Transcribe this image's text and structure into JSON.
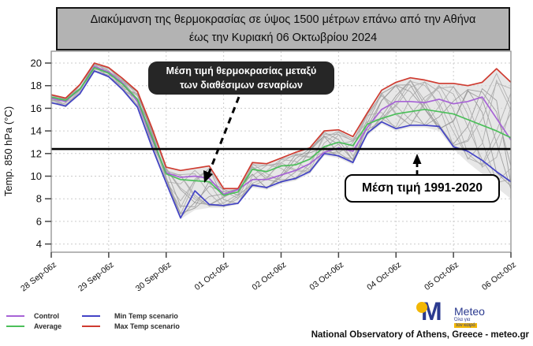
{
  "title": {
    "line1": "Διακύμανση της θερμοκρασίας σε ύψος 1500 μέτρων επάνω από την Αθήνα",
    "line2": "έως την Κυριακή 06 Οκτωβρίου 2024"
  },
  "annotations": {
    "mean_scenarios": {
      "line1": "Μέση τιμή θερμοκρασίας μεταξύ",
      "line2": "των διαθέσιμων σεναρίων"
    },
    "climate_mean": {
      "label": "Μέση τιμή 1991-2020",
      "value_degC": 12.4
    }
  },
  "legend": [
    {
      "label": "Control",
      "color": "#a763d6"
    },
    {
      "label": "Average",
      "color": "#4cbf5a"
    },
    {
      "label": "Min Temp scenario",
      "color": "#4343c6"
    },
    {
      "label": "Max Temp scenario",
      "color": "#cf3b30"
    }
  ],
  "footer": {
    "logo_m": "M",
    "logo_text": "Meteo",
    "logo_tagline1": "Όλα για",
    "logo_tagline2": "τον καιρό",
    "attribution": "National Observatory of Athens, Greece - meteo.gr"
  },
  "chart_data": {
    "type": "line",
    "title": "Διακύμανση της θερμοκρασίας σε ύψος 1500 μέτρων επάνω από την Αθήνα έως την Κυριακή 06 Οκτωβρίου 2024",
    "ylabel": "Temp. 850 hPa (°C)",
    "y_ticks": [
      4,
      6,
      8,
      10,
      12,
      14,
      16,
      18,
      20
    ],
    "ylim": [
      3.3,
      21.0
    ],
    "x_tick_labels": [
      "28 Sep-06z",
      "29 Sep-06z",
      "30 Sep-06z",
      "01 Oct-06z",
      "02 Oct-06z",
      "03 Oct-06z",
      "04 Oct-06z",
      "05 Oct-06z",
      "06 Oct-00z"
    ],
    "x_tick_indices": [
      0,
      4,
      8,
      12,
      16,
      20,
      24,
      28,
      32
    ],
    "time_step_hours": 6,
    "points_count": 33,
    "grid": true,
    "legend_position": "bottom-left",
    "mean_1991_2020": 12.4,
    "series": [
      {
        "name": "Control",
        "color": "#a763d6",
        "values": [
          16.9,
          16.6,
          17.7,
          19.7,
          19.2,
          18.2,
          16.6,
          13.3,
          10.3,
          9.9,
          10.0,
          9.8,
          8.4,
          8.8,
          9.7,
          9.7,
          10.1,
          10.5,
          11.1,
          12.1,
          12.5,
          12.2,
          14.3,
          15.9,
          16.6,
          16.6,
          16.5,
          16.8,
          16.4,
          16.6,
          17.0,
          15.1,
          13.2
        ]
      },
      {
        "name": "Average",
        "color": "#4cbf5a",
        "values": [
          17.0,
          16.7,
          17.7,
          19.6,
          19.1,
          18.1,
          16.8,
          13.5,
          10.2,
          9.7,
          9.6,
          9.5,
          8.3,
          8.6,
          10.6,
          10.4,
          10.9,
          11.0,
          11.5,
          12.6,
          13.0,
          12.7,
          14.6,
          15.1,
          15.5,
          15.7,
          15.9,
          15.7,
          15.5,
          15.0,
          14.5,
          14.0,
          13.4
        ]
      },
      {
        "name": "Min Temp scenario",
        "color": "#4343c6",
        "values": [
          16.5,
          16.2,
          17.3,
          19.3,
          18.8,
          17.6,
          16.1,
          12.6,
          9.4,
          6.3,
          8.7,
          7.5,
          7.4,
          7.6,
          9.2,
          9.0,
          9.5,
          9.8,
          10.4,
          12.0,
          11.8,
          11.2,
          13.8,
          14.8,
          14.2,
          14.5,
          14.5,
          14.4,
          12.6,
          12.2,
          11.4,
          10.4,
          9.5
        ]
      },
      {
        "name": "Max Temp scenario",
        "color": "#cf3b30",
        "values": [
          17.2,
          16.9,
          18.1,
          20.0,
          19.6,
          18.6,
          17.5,
          14.3,
          10.8,
          10.5,
          10.7,
          10.9,
          8.9,
          8.9,
          11.2,
          11.1,
          11.6,
          12.1,
          12.5,
          14.0,
          14.1,
          13.5,
          15.6,
          17.6,
          18.3,
          18.7,
          18.5,
          18.2,
          18.2,
          18.0,
          18.3,
          19.5,
          18.3
        ]
      }
    ],
    "ensemble_envelope": {
      "low": [
        16.4,
        16.1,
        17.2,
        19.2,
        18.7,
        17.5,
        16.0,
        12.5,
        9.3,
        6.2,
        7.0,
        7.2,
        7.2,
        7.5,
        9.0,
        8.8,
        9.3,
        9.6,
        10.2,
        11.8,
        11.6,
        11.0,
        13.6,
        14.6,
        14.0,
        14.3,
        14.3,
        14.0,
        12.4,
        11.2,
        10.2,
        9.0,
        8.0
      ],
      "high": [
        17.2,
        16.9,
        18.1,
        20.0,
        19.6,
        18.6,
        17.5,
        14.3,
        10.8,
        10.5,
        10.7,
        10.9,
        8.9,
        8.9,
        11.2,
        11.1,
        11.6,
        12.1,
        12.5,
        14.0,
        14.1,
        13.5,
        15.6,
        17.6,
        18.3,
        18.7,
        18.5,
        18.2,
        18.2,
        18.0,
        18.3,
        19.5,
        18.3
      ]
    },
    "ensemble_members_count": 12
  }
}
